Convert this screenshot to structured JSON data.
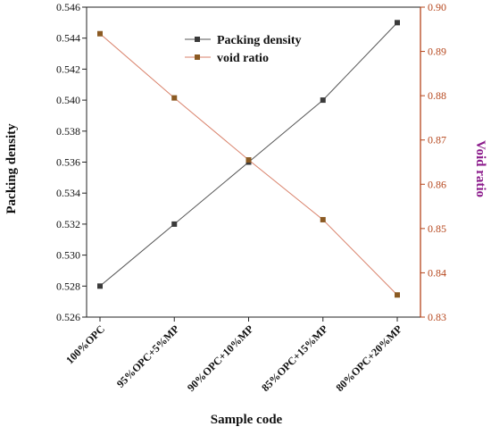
{
  "chart_data": {
    "type": "line",
    "categories": [
      "100%OPC",
      "95%OPC+5%MP",
      "90%OPC+10%MP",
      "85%OPC+15%MP",
      "80%OPC+20%MP"
    ],
    "xlabel": "Sample code",
    "y_left": {
      "label": "Packing density",
      "range": [
        0.526,
        0.546
      ],
      "ticks": [
        "0.526",
        "0.528",
        "0.530",
        "0.532",
        "0.534",
        "0.536",
        "0.538",
        "0.540",
        "0.542",
        "0.544",
        "0.546"
      ]
    },
    "y_right": {
      "label": "Void ratio",
      "range": [
        0.83,
        0.9
      ],
      "ticks": [
        "0.83",
        "0.84",
        "0.85",
        "0.86",
        "0.87",
        "0.88",
        "0.89",
        "0.90"
      ]
    },
    "series": [
      {
        "name": "Packing density",
        "axis": "left",
        "values": [
          0.528,
          0.532,
          0.536,
          0.54,
          0.545
        ]
      },
      {
        "name": "void ratio",
        "axis": "right",
        "values": [
          0.894,
          0.8795,
          0.8655,
          0.852,
          0.835
        ]
      }
    ],
    "legend_position": "top-center",
    "grid": false
  },
  "colors": {
    "left_axis": "#222222",
    "right_axis": "#b5451b",
    "right_label": "#8b1a8b",
    "packing_line": "#555555",
    "packing_marker": "#3a3a3a",
    "void_line": "#d9826b",
    "void_marker": "#8b5a22"
  }
}
